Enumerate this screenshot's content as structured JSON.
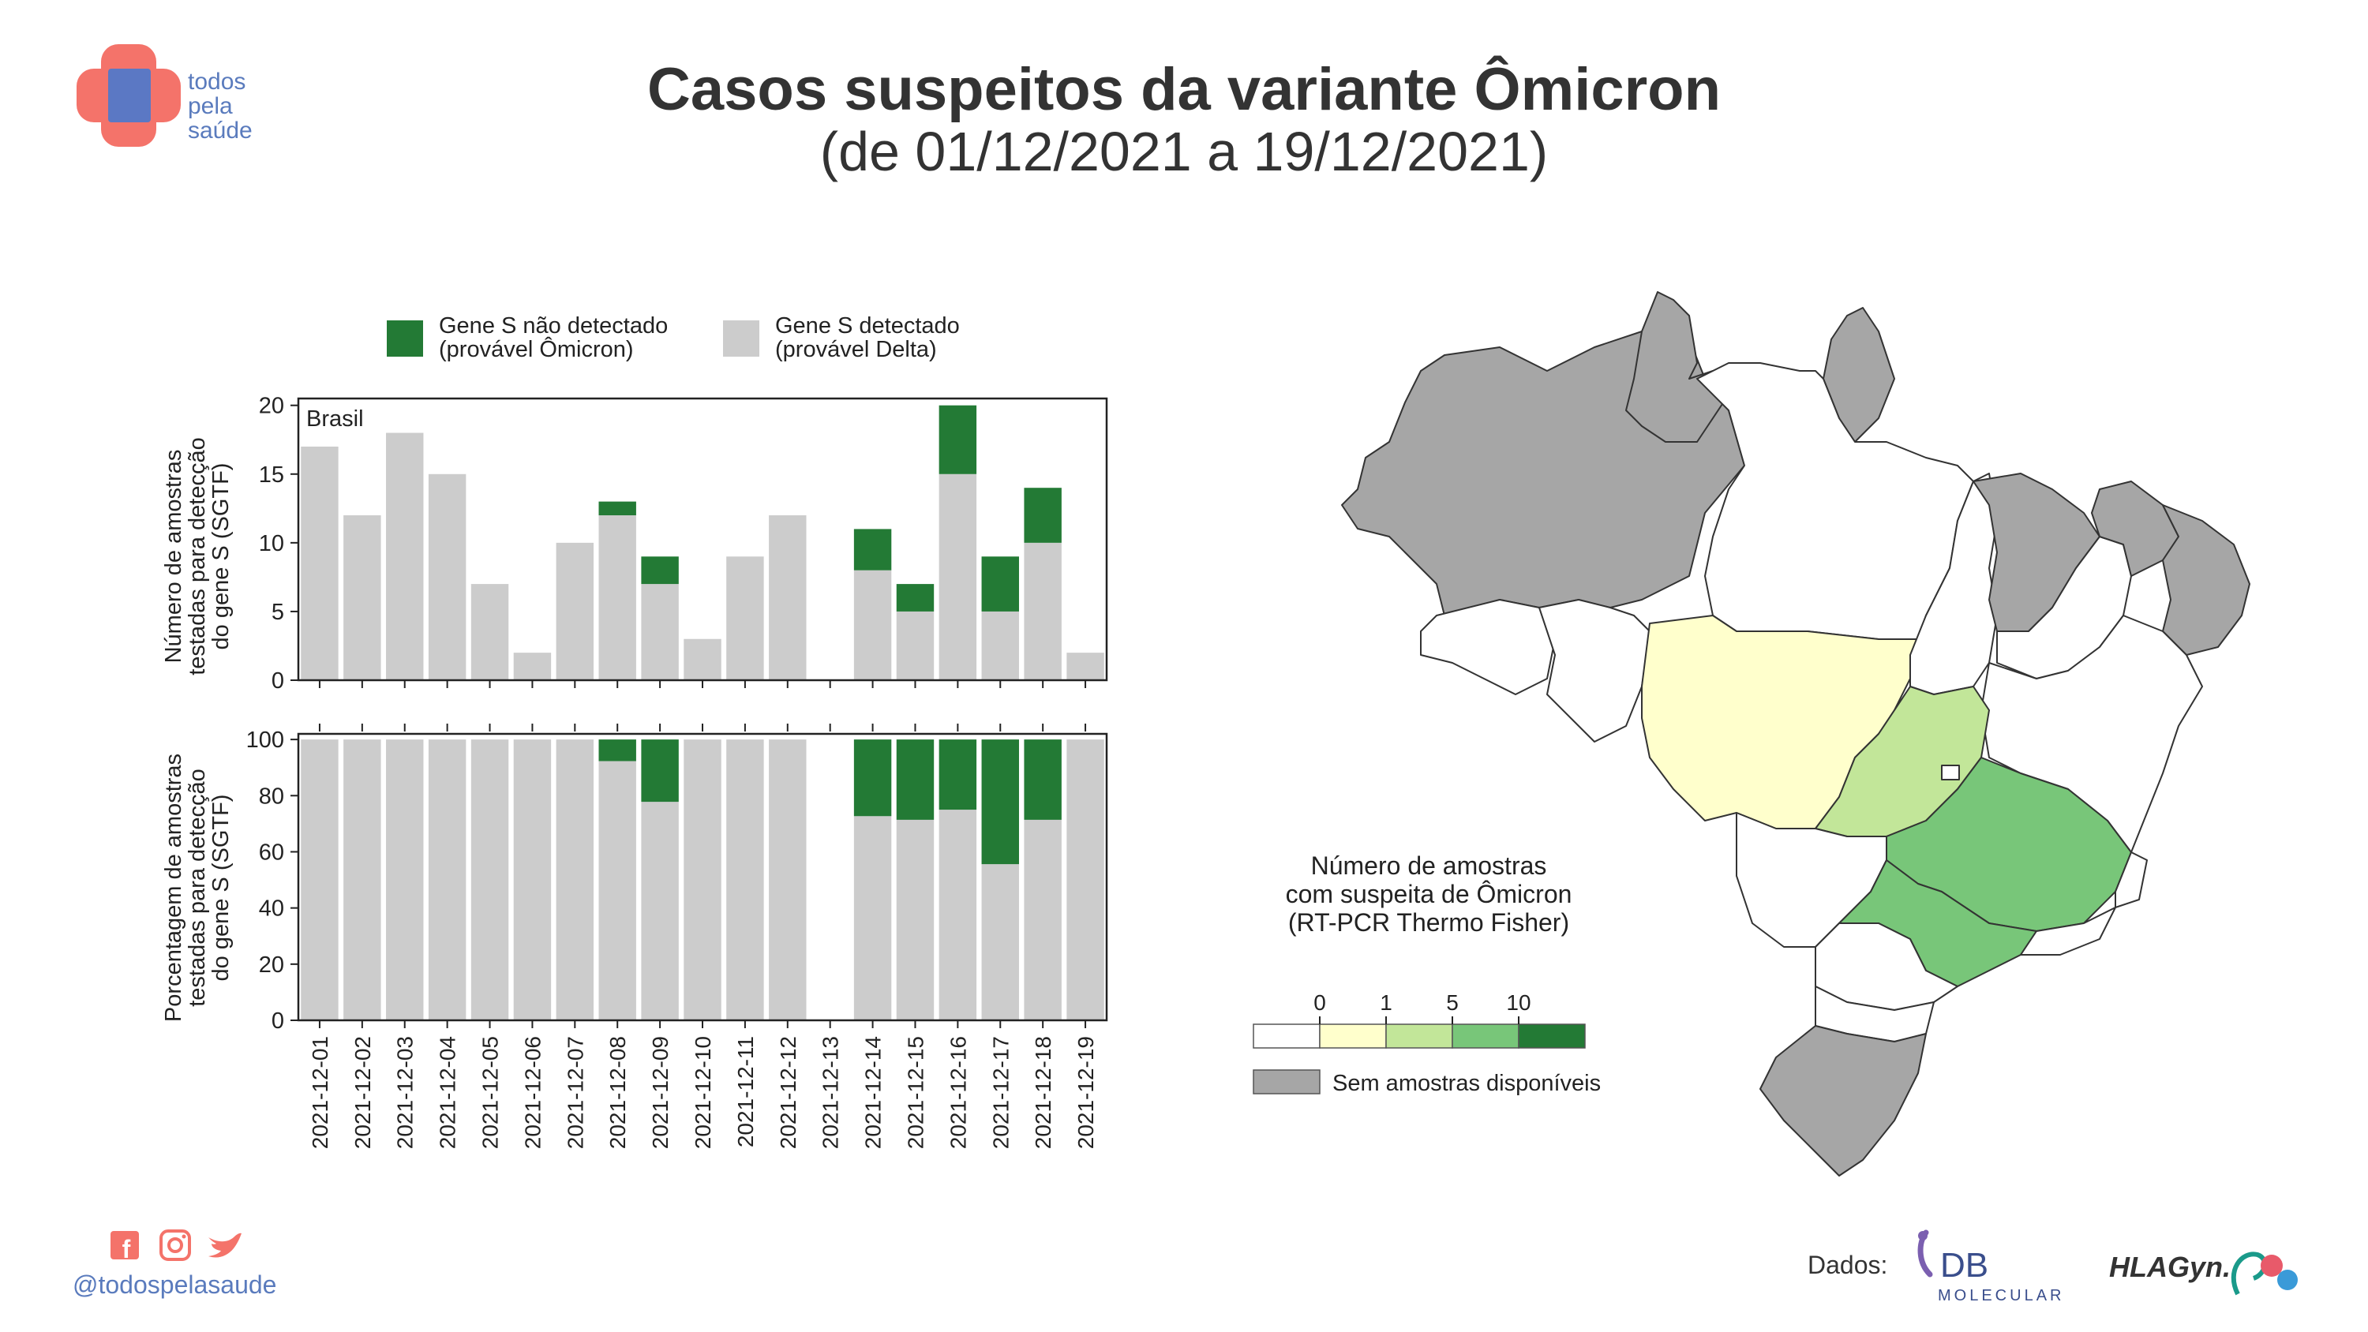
{
  "header": {
    "logo_lines": [
      "todos",
      "pela",
      "saúde"
    ],
    "title": "Casos suspeitos da variante Ômicron",
    "subtitle": "(de 01/12/2021 a 19/12/2021)"
  },
  "legend": {
    "items": [
      {
        "line1": "Gene S não detectado",
        "line2": "(provável Ômicron)",
        "color": "#237a35"
      },
      {
        "line1": "Gene S detectado",
        "line2": "(provável Delta)",
        "color": "#cccccc"
      }
    ]
  },
  "chart_data": [
    {
      "type": "bar",
      "stacked": true,
      "annotation": "Brasil",
      "ylabel_lines": [
        "Número de amostras",
        "testadas para detecção",
        "do gene S (SGTF)"
      ],
      "ylim": [
        0,
        20.5
      ],
      "yticks": [
        0,
        5,
        10,
        15,
        20
      ],
      "categories": [
        "2021-12-01",
        "2021-12-02",
        "2021-12-03",
        "2021-12-04",
        "2021-12-05",
        "2021-12-06",
        "2021-12-07",
        "2021-12-08",
        "2021-12-09",
        "2021-12-10",
        "2021-12-11",
        "2021-12-12",
        "2021-12-13",
        "2021-12-14",
        "2021-12-15",
        "2021-12-16",
        "2021-12-17",
        "2021-12-18",
        "2021-12-19"
      ],
      "series": [
        {
          "name": "Gene S detectado",
          "values": [
            17,
            12,
            18,
            15,
            7,
            2,
            10,
            12,
            7,
            3,
            9,
            12,
            0,
            8,
            5,
            15,
            5,
            10,
            2
          ]
        },
        {
          "name": "Gene S não detectado",
          "values": [
            0,
            0,
            0,
            0,
            0,
            0,
            0,
            1,
            2,
            0,
            0,
            0,
            0,
            3,
            2,
            5,
            4,
            4,
            0
          ]
        }
      ]
    },
    {
      "type": "bar",
      "stacked": true,
      "ylabel_lines": [
        "Porcentagem de amostras",
        "testadas para detecção",
        "do gene S (SGTF)"
      ],
      "ylim": [
        0,
        102
      ],
      "yticks": [
        0,
        20,
        40,
        60,
        80,
        100
      ],
      "categories": [
        "2021-12-01",
        "2021-12-02",
        "2021-12-03",
        "2021-12-04",
        "2021-12-05",
        "2021-12-06",
        "2021-12-07",
        "2021-12-08",
        "2021-12-09",
        "2021-12-10",
        "2021-12-11",
        "2021-12-12",
        "2021-12-13",
        "2021-12-14",
        "2021-12-15",
        "2021-12-16",
        "2021-12-17",
        "2021-12-18",
        "2021-12-19"
      ],
      "series": [
        {
          "name": "Gene S detectado",
          "values": [
            100,
            100,
            100,
            100,
            100,
            100,
            100,
            92.3,
            77.8,
            100,
            100,
            100,
            0,
            72.7,
            71.4,
            75,
            55.6,
            71.4,
            100
          ]
        },
        {
          "name": "Gene S não detectado",
          "values": [
            0,
            0,
            0,
            0,
            0,
            0,
            0,
            7.7,
            22.2,
            0,
            0,
            0,
            0,
            27.3,
            28.6,
            25,
            44.4,
            28.6,
            0
          ]
        }
      ]
    }
  ],
  "map": {
    "legend_title_lines": [
      "Número de amostras",
      "com suspeita de Ômicron",
      "(RT-PCR Thermo Fisher)"
    ],
    "scale_ticks": [
      "0",
      "1",
      "5",
      "10"
    ],
    "scale_colors": [
      "#ffffff",
      "#ffffcc",
      "#c2e699",
      "#78c679",
      "#237a35"
    ],
    "no_data_label": "Sem amostras disponíveis",
    "no_data_color": "#a6a6a6"
  },
  "footer": {
    "handle": "@todospelasaude",
    "social_icons": [
      "facebook-icon",
      "instagram-icon",
      "twitter-icon"
    ],
    "data_label": "Dados:",
    "partner1_main": "DB",
    "partner1_sub": "MOLECULAR",
    "partner2": "HLAGyn."
  }
}
